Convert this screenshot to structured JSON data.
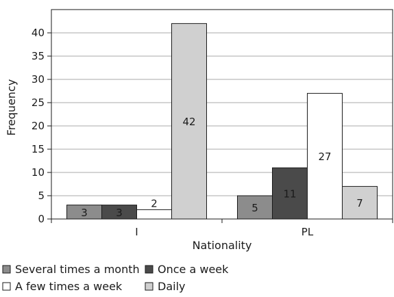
{
  "chart_data": {
    "type": "bar",
    "title": "",
    "xlabel": "Nationality",
    "ylabel": "Frequency",
    "categories": [
      "I",
      "PL"
    ],
    "ylim": [
      0,
      45
    ],
    "yticks": [
      0,
      5,
      10,
      15,
      20,
      25,
      30,
      35,
      40
    ],
    "grid": true,
    "legend_placement": "bottom",
    "series": [
      {
        "name": "Several times a month",
        "values": [
          3,
          5
        ],
        "color": "#8c8c8c"
      },
      {
        "name": "Once a week",
        "values": [
          3,
          11
        ],
        "color": "#4a4a4a"
      },
      {
        "name": "A few times a week",
        "values": [
          2,
          27
        ],
        "color": "#ffffff"
      },
      {
        "name": "Daily",
        "values": [
          42,
          7
        ],
        "color": "#d0d0d0"
      }
    ]
  }
}
